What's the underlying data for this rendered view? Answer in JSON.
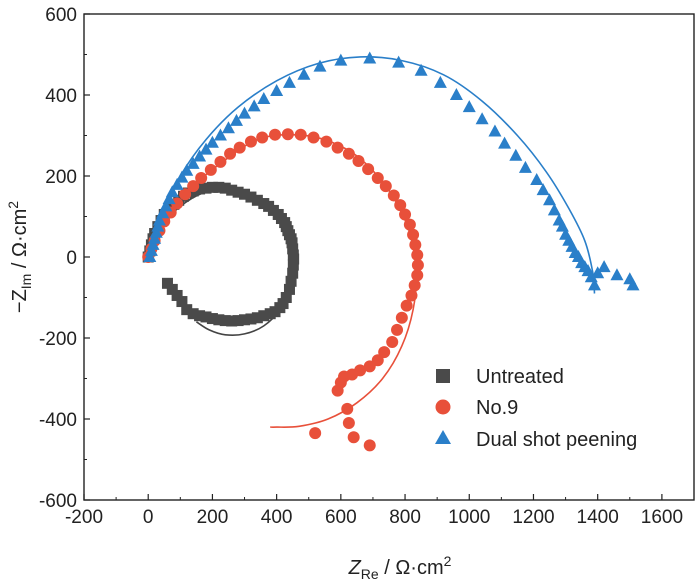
{
  "chart_data": {
    "type": "scatter",
    "xlabel": {
      "main": "Z",
      "sub": "Re",
      "unit": " / Ω·cm",
      "sup": "2"
    },
    "ylabel": {
      "main": "−Z",
      "sub": "Im",
      "unit": " / Ω·cm",
      "sup": "2"
    },
    "xlim": [
      -200,
      1700
    ],
    "ylim": [
      -600,
      600
    ],
    "x_ticks": [
      -200,
      0,
      200,
      400,
      600,
      800,
      1000,
      1200,
      1400,
      1600
    ],
    "y_ticks": [
      -600,
      -400,
      -200,
      0,
      200,
      400,
      600
    ],
    "x_tick_labels": [
      "-200",
      "0",
      "200",
      "400",
      "600",
      "800",
      "1000",
      "1200",
      "1400",
      "1600"
    ],
    "y_tick_labels": [
      "-600",
      "-400",
      "-200",
      "0",
      "200",
      "400",
      "600"
    ],
    "grid": false,
    "legend_position": "bottom-right",
    "series": [
      {
        "name": "Untreated",
        "marker": "square",
        "color": "#4a4a4a",
        "points": [
          [
            0,
            0
          ],
          [
            5,
            15
          ],
          [
            10,
            30
          ],
          [
            15,
            45
          ],
          [
            20,
            58
          ],
          [
            30,
            75
          ],
          [
            40,
            90
          ],
          [
            50,
            105
          ],
          [
            65,
            118
          ],
          [
            80,
            130
          ],
          [
            95,
            140
          ],
          [
            110,
            150
          ],
          [
            125,
            158
          ],
          [
            140,
            163
          ],
          [
            160,
            168
          ],
          [
            180,
            170
          ],
          [
            200,
            172
          ],
          [
            220,
            172
          ],
          [
            240,
            170
          ],
          [
            260,
            165
          ],
          [
            280,
            160
          ],
          [
            300,
            155
          ],
          [
            320,
            148
          ],
          [
            340,
            140
          ],
          [
            360,
            132
          ],
          [
            375,
            125
          ],
          [
            390,
            115
          ],
          [
            405,
            105
          ],
          [
            415,
            95
          ],
          [
            425,
            85
          ],
          [
            430,
            75
          ],
          [
            435,
            65
          ],
          [
            440,
            55
          ],
          [
            445,
            45
          ],
          [
            448,
            35
          ],
          [
            450,
            20
          ],
          [
            452,
            5
          ],
          [
            453,
            -5
          ],
          [
            452,
            -20
          ],
          [
            450,
            -40
          ],
          [
            445,
            -60
          ],
          [
            440,
            -80
          ],
          [
            430,
            -100
          ],
          [
            420,
            -115
          ],
          [
            410,
            -125
          ],
          [
            395,
            -135
          ],
          [
            380,
            -140
          ],
          [
            360,
            -145
          ],
          [
            340,
            -150
          ],
          [
            320,
            -153
          ],
          [
            300,
            -155
          ],
          [
            280,
            -157
          ],
          [
            260,
            -158
          ],
          [
            240,
            -157
          ],
          [
            220,
            -155
          ],
          [
            200,
            -152
          ],
          [
            180,
            -148
          ],
          [
            160,
            -145
          ],
          [
            140,
            -140
          ],
          [
            120,
            -130
          ],
          [
            105,
            -110
          ],
          [
            90,
            -95
          ],
          [
            75,
            -80
          ],
          [
            60,
            -65
          ]
        ],
        "fit": [
          [
            0,
            0
          ],
          [
            40,
            75
          ],
          [
            100,
            125
          ],
          [
            170,
            158
          ],
          [
            240,
            168
          ],
          [
            310,
            155
          ],
          [
            370,
            130
          ],
          [
            420,
            90
          ],
          [
            445,
            40
          ],
          [
            450,
            -20
          ],
          [
            440,
            -80
          ],
          [
            410,
            -130
          ],
          [
            360,
            -170
          ],
          [
            300,
            -190
          ],
          [
            240,
            -192
          ],
          [
            190,
            -180
          ],
          [
            150,
            -160
          ]
        ]
      },
      {
        "name": "No.9",
        "marker": "circle",
        "color": "#e8503a",
        "points": [
          [
            0,
            0
          ],
          [
            10,
            20
          ],
          [
            20,
            40
          ],
          [
            35,
            65
          ],
          [
            50,
            88
          ],
          [
            70,
            110
          ],
          [
            90,
            132
          ],
          [
            115,
            155
          ],
          [
            140,
            175
          ],
          [
            165,
            195
          ],
          [
            195,
            215
          ],
          [
            225,
            235
          ],
          [
            255,
            255
          ],
          [
            285,
            270
          ],
          [
            320,
            285
          ],
          [
            355,
            295
          ],
          [
            395,
            302
          ],
          [
            435,
            303
          ],
          [
            475,
            302
          ],
          [
            515,
            295
          ],
          [
            555,
            285
          ],
          [
            590,
            270
          ],
          [
            625,
            255
          ],
          [
            655,
            237
          ],
          [
            685,
            217
          ],
          [
            715,
            195
          ],
          [
            740,
            175
          ],
          [
            765,
            152
          ],
          [
            785,
            128
          ],
          [
            800,
            105
          ],
          [
            815,
            80
          ],
          [
            825,
            55
          ],
          [
            832,
            30
          ],
          [
            838,
            5
          ],
          [
            840,
            -20
          ],
          [
            838,
            -45
          ],
          [
            830,
            -70
          ],
          [
            820,
            -95
          ],
          [
            805,
            -120
          ],
          [
            790,
            -150
          ],
          [
            775,
            -180
          ],
          [
            760,
            -210
          ],
          [
            735,
            -235
          ],
          [
            715,
            -255
          ],
          [
            690,
            -270
          ],
          [
            660,
            -280
          ],
          [
            635,
            -290
          ],
          [
            610,
            -295
          ],
          [
            600,
            -310
          ],
          [
            590,
            -330
          ],
          [
            620,
            -375
          ],
          [
            625,
            -410
          ],
          [
            640,
            -445
          ],
          [
            690,
            -465
          ],
          [
            520,
            -435
          ]
        ],
        "fit": [
          [
            0,
            0
          ],
          [
            60,
            100
          ],
          [
            140,
            175
          ],
          [
            240,
            240
          ],
          [
            340,
            290
          ],
          [
            440,
            302
          ],
          [
            540,
            292
          ],
          [
            640,
            255
          ],
          [
            720,
            195
          ],
          [
            780,
            125
          ],
          [
            820,
            45
          ],
          [
            835,
            -40
          ],
          [
            825,
            -130
          ],
          [
            790,
            -220
          ],
          [
            730,
            -300
          ],
          [
            650,
            -360
          ],
          [
            560,
            -400
          ],
          [
            470,
            -418
          ],
          [
            400,
            -420
          ],
          [
            380,
            -420
          ]
        ]
      },
      {
        "name": "Dual shot peening",
        "marker": "triangle",
        "color": "#2a7fc9",
        "points": [
          [
            5,
            0
          ],
          [
            10,
            15
          ],
          [
            15,
            30
          ],
          [
            20,
            45
          ],
          [
            25,
            60
          ],
          [
            30,
            75
          ],
          [
            35,
            90
          ],
          [
            45,
            108
          ],
          [
            55,
            125
          ],
          [
            65,
            143
          ],
          [
            75,
            160
          ],
          [
            90,
            178
          ],
          [
            105,
            196
          ],
          [
            120,
            213
          ],
          [
            140,
            230
          ],
          [
            160,
            248
          ],
          [
            180,
            265
          ],
          [
            200,
            282
          ],
          [
            225,
            300
          ],
          [
            250,
            318
          ],
          [
            275,
            336
          ],
          [
            300,
            354
          ],
          [
            330,
            372
          ],
          [
            360,
            390
          ],
          [
            400,
            410
          ],
          [
            440,
            430
          ],
          [
            485,
            450
          ],
          [
            535,
            470
          ],
          [
            600,
            485
          ],
          [
            690,
            490
          ],
          [
            780,
            480
          ],
          [
            850,
            460
          ],
          [
            910,
            430
          ],
          [
            960,
            400
          ],
          [
            1000,
            370
          ],
          [
            1040,
            340
          ],
          [
            1080,
            310
          ],
          [
            1110,
            280
          ],
          [
            1145,
            250
          ],
          [
            1175,
            220
          ],
          [
            1210,
            190
          ],
          [
            1230,
            165
          ],
          [
            1250,
            140
          ],
          [
            1265,
            115
          ],
          [
            1280,
            90
          ],
          [
            1290,
            75
          ],
          [
            1300,
            55
          ],
          [
            1310,
            40
          ],
          [
            1320,
            25
          ],
          [
            1330,
            10
          ],
          [
            1340,
            0
          ],
          [
            1350,
            -15
          ],
          [
            1360,
            -25
          ],
          [
            1370,
            -35
          ],
          [
            1380,
            -50
          ],
          [
            1390,
            -70
          ],
          [
            1400,
            -40
          ],
          [
            1420,
            -25
          ],
          [
            1460,
            -45
          ],
          [
            1500,
            -55
          ],
          [
            1510,
            -70
          ]
        ],
        "fit": [
          [
            0,
            0
          ],
          [
            40,
            100
          ],
          [
            100,
            200
          ],
          [
            180,
            290
          ],
          [
            280,
            370
          ],
          [
            400,
            435
          ],
          [
            530,
            478
          ],
          [
            660,
            494
          ],
          [
            790,
            485
          ],
          [
            920,
            450
          ],
          [
            1040,
            385
          ],
          [
            1150,
            300
          ],
          [
            1240,
            210
          ],
          [
            1310,
            120
          ],
          [
            1360,
            40
          ],
          [
            1385,
            -40
          ],
          [
            1390,
            -90
          ]
        ]
      }
    ]
  }
}
